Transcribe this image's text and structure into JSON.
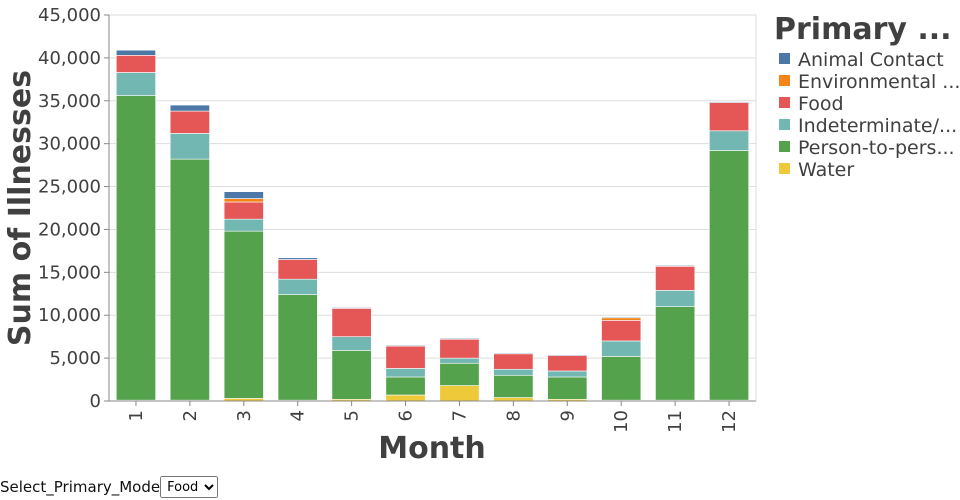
{
  "chart_data": {
    "type": "bar",
    "stacked": true,
    "xlabel": "Month",
    "ylabel": "Sum of Illnesses",
    "ylim": [
      0,
      45000
    ],
    "y_ticks": [
      0,
      5000,
      10000,
      15000,
      20000,
      25000,
      30000,
      35000,
      40000,
      45000
    ],
    "y_tick_labels": [
      "0",
      "5,000",
      "10,000",
      "15,000",
      "20,000",
      "25,000",
      "30,000",
      "35,000",
      "40,000",
      "45,000"
    ],
    "categories": [
      "1",
      "2",
      "3",
      "4",
      "5",
      "6",
      "7",
      "8",
      "9",
      "10",
      "11",
      "12"
    ],
    "legend_title": "Primary ...",
    "legend_position": "right",
    "grid": true,
    "series": [
      {
        "name": "Water",
        "label": "Water",
        "color": "#eeca3b",
        "values": [
          100,
          100,
          300,
          100,
          200,
          700,
          1800,
          400,
          200,
          100,
          100,
          100
        ]
      },
      {
        "name": "Person-to-person",
        "label": "Person-to-pers...",
        "color": "#54a24b",
        "values": [
          35500,
          28100,
          19500,
          12300,
          5700,
          2100,
          2600,
          2600,
          2600,
          5100,
          10900,
          29100
        ]
      },
      {
        "name": "Indeterminate/Other/Unknown",
        "label": "Indeterminate/...",
        "color": "#72b7b2",
        "values": [
          2700,
          3000,
          1400,
          1800,
          1600,
          1000,
          600,
          700,
          700,
          1800,
          1900,
          2300
        ]
      },
      {
        "name": "Food",
        "label": "Food",
        "color": "#e45756",
        "values": [
          2000,
          2600,
          2000,
          2300,
          3300,
          2600,
          2200,
          1800,
          1800,
          2400,
          2800,
          3300
        ]
      },
      {
        "name": "Environmental contamination",
        "label": "Environmental ...",
        "color": "#f58518",
        "values": [
          0,
          0,
          400,
          0,
          0,
          0,
          0,
          0,
          0,
          300,
          0,
          0
        ]
      },
      {
        "name": "Animal Contact",
        "label": "Animal Contact",
        "color": "#4c78a8",
        "values": [
          600,
          700,
          800,
          200,
          100,
          100,
          100,
          100,
          100,
          100,
          100,
          100
        ]
      }
    ],
    "legend_order": [
      "Animal Contact",
      "Environmental contamination",
      "Food",
      "Indeterminate/Other/Unknown",
      "Person-to-person",
      "Water"
    ]
  },
  "controls": {
    "select_label": "Select_Primary_Mode",
    "select_value": "Food"
  }
}
